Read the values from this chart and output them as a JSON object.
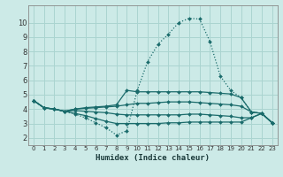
{
  "background_color": "#cceae7",
  "grid_color": "#aad4d0",
  "line_color": "#1a6b6b",
  "xlabel": "Humidex (Indice chaleur)",
  "xlim": [
    -0.5,
    23.5
  ],
  "ylim": [
    1.5,
    11.2
  ],
  "xticks": [
    0,
    1,
    2,
    3,
    4,
    5,
    6,
    7,
    8,
    9,
    10,
    11,
    12,
    13,
    14,
    15,
    16,
    17,
    18,
    19,
    20,
    21,
    22,
    23
  ],
  "yticks": [
    2,
    3,
    4,
    5,
    6,
    7,
    8,
    9,
    10
  ],
  "lines": [
    {
      "x": [
        0,
        1,
        2,
        3,
        4,
        5,
        6,
        7,
        8,
        9,
        10,
        11,
        12,
        13,
        14,
        15,
        16,
        17,
        18,
        19,
        20,
        21,
        22,
        23
      ],
      "y": [
        4.6,
        4.1,
        4.0,
        3.85,
        3.65,
        3.4,
        3.05,
        2.7,
        2.2,
        2.5,
        5.3,
        7.3,
        8.5,
        9.2,
        10.0,
        10.3,
        10.25,
        8.7,
        6.3,
        5.3,
        4.8,
        3.8,
        3.7,
        3.05
      ],
      "dotted": true
    },
    {
      "x": [
        0,
        1,
        2,
        3,
        4,
        5,
        6,
        7,
        8,
        9,
        10,
        11,
        12,
        13,
        14,
        15,
        16,
        17,
        18,
        19,
        20,
        21,
        22,
        23
      ],
      "y": [
        4.6,
        4.1,
        4.0,
        3.85,
        4.0,
        4.1,
        4.15,
        4.2,
        4.3,
        5.3,
        5.2,
        5.2,
        5.2,
        5.2,
        5.2,
        5.2,
        5.2,
        5.15,
        5.1,
        5.05,
        4.8,
        3.8,
        3.7,
        3.05
      ],
      "dotted": false
    },
    {
      "x": [
        0,
        1,
        2,
        3,
        4,
        5,
        6,
        7,
        8,
        9,
        10,
        11,
        12,
        13,
        14,
        15,
        16,
        17,
        18,
        19,
        20,
        21,
        22,
        23
      ],
      "y": [
        4.6,
        4.1,
        4.0,
        3.85,
        4.0,
        4.05,
        4.1,
        4.15,
        4.2,
        4.3,
        4.4,
        4.4,
        4.45,
        4.5,
        4.5,
        4.5,
        4.45,
        4.4,
        4.35,
        4.3,
        4.2,
        3.8,
        3.7,
        3.05
      ],
      "dotted": false
    },
    {
      "x": [
        0,
        1,
        2,
        3,
        4,
        5,
        6,
        7,
        8,
        9,
        10,
        11,
        12,
        13,
        14,
        15,
        16,
        17,
        18,
        19,
        20,
        21,
        22,
        23
      ],
      "y": [
        4.6,
        4.1,
        4.0,
        3.85,
        3.9,
        3.85,
        3.8,
        3.75,
        3.65,
        3.6,
        3.6,
        3.6,
        3.6,
        3.6,
        3.6,
        3.65,
        3.65,
        3.6,
        3.55,
        3.5,
        3.4,
        3.4,
        3.7,
        3.05
      ],
      "dotted": false
    },
    {
      "x": [
        0,
        1,
        2,
        3,
        4,
        5,
        6,
        7,
        8,
        9,
        10,
        11,
        12,
        13,
        14,
        15,
        16,
        17,
        18,
        19,
        20,
        21,
        22,
        23
      ],
      "y": [
        4.6,
        4.1,
        4.0,
        3.85,
        3.7,
        3.55,
        3.35,
        3.15,
        3.0,
        3.0,
        3.0,
        3.0,
        3.0,
        3.05,
        3.05,
        3.1,
        3.1,
        3.1,
        3.1,
        3.1,
        3.1,
        3.4,
        3.7,
        3.05
      ],
      "dotted": false
    }
  ]
}
